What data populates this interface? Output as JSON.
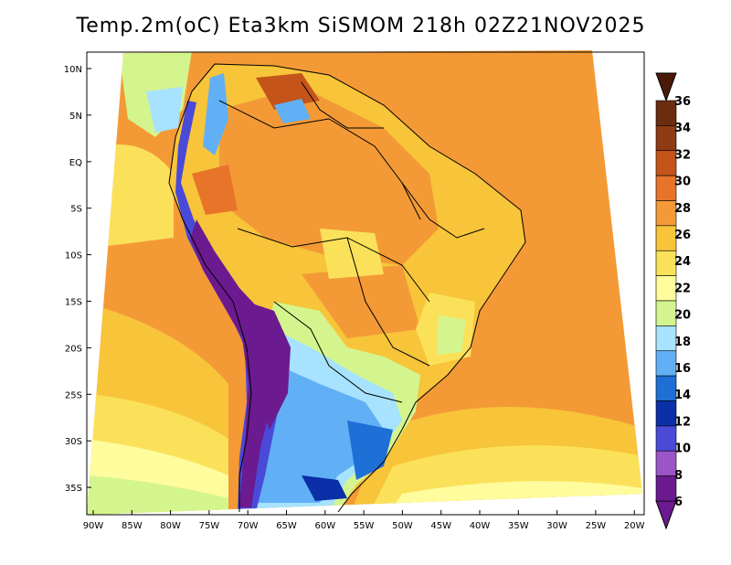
{
  "title": "Temp.2m(oC) Eta3km SiSMOM 218h 02Z21NOV2025",
  "map": {
    "lat_labels": [
      "10N",
      "5N",
      "EQ",
      "5S",
      "10S",
      "15S",
      "20S",
      "25S",
      "30S",
      "35S"
    ],
    "lon_labels": [
      "90W",
      "85W",
      "80W",
      "75W",
      "70W",
      "65W",
      "60W",
      "55W",
      "50W",
      "45W",
      "40W",
      "35W",
      "30W",
      "25W",
      "20W"
    ]
  },
  "colorbar": {
    "labels": [
      "36",
      "34",
      "32",
      "30",
      "28",
      "26",
      "24",
      "22",
      "20",
      "18",
      "16",
      "14",
      "12",
      "10",
      "8",
      "6"
    ],
    "colors": [
      "#6b2d10",
      "#8e3a12",
      "#c4541a",
      "#e8742a",
      "#f39a36",
      "#f7c43a",
      "#fbe15a",
      "#fefc9c",
      "#d4f58e",
      "#a7e3ff",
      "#61b0f5",
      "#1e6fd6",
      "#0a2fa8",
      "#4a4ad8",
      "#9b55c9",
      "#6b1a8f"
    ]
  }
}
